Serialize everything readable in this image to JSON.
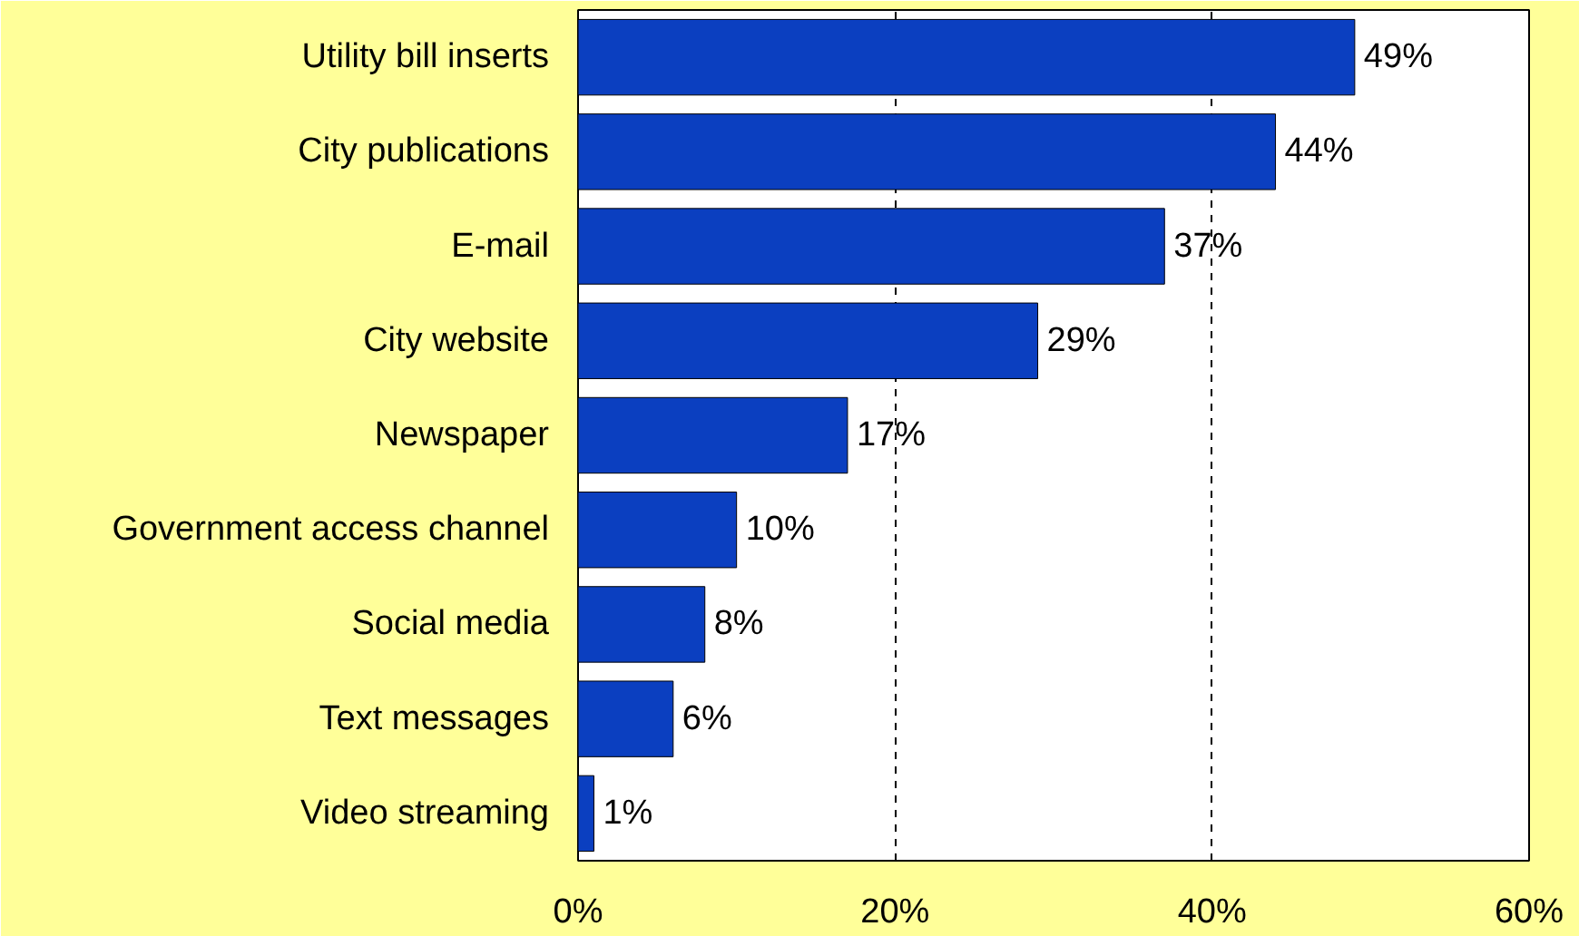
{
  "chart_data": {
    "type": "bar",
    "orientation": "horizontal",
    "categories": [
      "Utility bill inserts",
      "City publications",
      "E-mail",
      "City website",
      "Newspaper",
      "Government access channel",
      "Social media",
      "Text messages",
      "Video streaming"
    ],
    "values": [
      49,
      44,
      37,
      29,
      17,
      10,
      8,
      6,
      1
    ],
    "value_labels": [
      "49%",
      "44%",
      "37%",
      "29%",
      "17%",
      "10%",
      "8%",
      "6%",
      "1%"
    ],
    "color": "#0b3fc0",
    "xlim": [
      0,
      60
    ],
    "xticks": [
      {
        "value": 0,
        "label": "0%"
      },
      {
        "value": 20,
        "label": "20%"
      },
      {
        "value": 40,
        "label": "40%"
      },
      {
        "value": 60,
        "label": "60%"
      }
    ],
    "grid": "x"
  }
}
